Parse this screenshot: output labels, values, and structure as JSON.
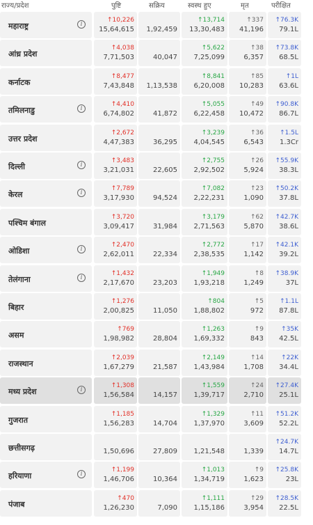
{
  "header": {
    "state": "राज्य/प्रदेश",
    "confirmed": "पुष्टि",
    "active": "सक्रिय",
    "recovered": "स्वस्थ हुए",
    "deceased": "मृत",
    "tested": "परीक्षित"
  },
  "colors": {
    "confirmed": "#e23028",
    "recovered": "#28a745",
    "tested": "#3e5fd1",
    "row_bg": "#f2f2f2",
    "row_highlight": "#e0e0e0"
  },
  "rows": [
    {
      "state": "महाराष्ट्र",
      "info": true,
      "conf_delta": "↑10,226",
      "conf": "15,64,615",
      "active": "1,92,459",
      "rec_delta": "↑13,714",
      "rec": "13,30,483",
      "dec_delta": "↑337",
      "dec": "41,196",
      "test_delta": "↑76.3K",
      "test": "79.1L"
    },
    {
      "state": "आंध्र प्रदेश",
      "info": false,
      "conf_delta": "↑4,038",
      "conf": "7,71,503",
      "active": "40,047",
      "rec_delta": "↑5,622",
      "rec": "7,25,099",
      "dec_delta": "↑38",
      "dec": "6,357",
      "test_delta": "↑73.8K",
      "test": "68.5L"
    },
    {
      "state": "कर्नाटक",
      "info": false,
      "conf_delta": "↑8,477",
      "conf": "7,43,848",
      "active": "1,13,538",
      "rec_delta": "↑8,841",
      "rec": "6,20,008",
      "dec_delta": "↑85",
      "dec": "10,283",
      "test_delta": "↑1L",
      "test": "63.6L"
    },
    {
      "state": "तमिलनाडु",
      "info": true,
      "conf_delta": "↑4,410",
      "conf": "6,74,802",
      "active": "41,872",
      "rec_delta": "↑5,055",
      "rec": "6,22,458",
      "dec_delta": "↑49",
      "dec": "10,472",
      "test_delta": "↑90.8K",
      "test": "86.7L"
    },
    {
      "state": "उत्तर प्रदेश",
      "info": false,
      "conf_delta": "↑2,672",
      "conf": "4,47,383",
      "active": "36,295",
      "rec_delta": "↑3,239",
      "rec": "4,04,545",
      "dec_delta": "↑36",
      "dec": "6,543",
      "test_delta": "↑1.5L",
      "test": "1.3Cr"
    },
    {
      "state": "दिल्ली",
      "info": true,
      "conf_delta": "↑3,483",
      "conf": "3,21,031",
      "active": "22,605",
      "rec_delta": "↑2,755",
      "rec": "2,92,502",
      "dec_delta": "↑26",
      "dec": "5,924",
      "test_delta": "↑55.9K",
      "test": "38.3L"
    },
    {
      "state": "केरल",
      "info": true,
      "conf_delta": "↑7,789",
      "conf": "3,17,930",
      "active": "94,524",
      "rec_delta": "↑7,082",
      "rec": "2,22,231",
      "dec_delta": "↑23",
      "dec": "1,090",
      "test_delta": "↑50.2K",
      "test": "37.8L"
    },
    {
      "state": "पश्चिम बंगाल",
      "info": false,
      "conf_delta": "↑3,720",
      "conf": "3,09,417",
      "active": "31,984",
      "rec_delta": "↑3,179",
      "rec": "2,71,563",
      "dec_delta": "↑62",
      "dec": "5,870",
      "test_delta": "↑42.7K",
      "test": "38.6L"
    },
    {
      "state": "ओडिशा",
      "info": true,
      "conf_delta": "↑2,470",
      "conf": "2,62,011",
      "active": "22,334",
      "rec_delta": "↑2,772",
      "rec": "2,38,535",
      "dec_delta": "↑17",
      "dec": "1,142",
      "test_delta": "↑42.1K",
      "test": "39.2L"
    },
    {
      "state": "तेलंगाना",
      "info": true,
      "conf_delta": "↑1,432",
      "conf": "2,17,670",
      "active": "23,203",
      "rec_delta": "↑1,949",
      "rec": "1,93,218",
      "dec_delta": "↑8",
      "dec": "1,249",
      "test_delta": "↑38.9K",
      "test": "37L"
    },
    {
      "state": "बिहार",
      "info": false,
      "conf_delta": "↑1,276",
      "conf": "2,00,825",
      "active": "11,050",
      "rec_delta": "↑804",
      "rec": "1,88,802",
      "dec_delta": "↑5",
      "dec": "972",
      "test_delta": "↑1.1L",
      "test": "87.8L"
    },
    {
      "state": "असम",
      "info": false,
      "conf_delta": "↑769",
      "conf": "1,98,982",
      "active": "28,804",
      "rec_delta": "↑1,263",
      "rec": "1,69,332",
      "dec_delta": "↑9",
      "dec": "843",
      "test_delta": "↑35K",
      "test": "42.5L"
    },
    {
      "state": "राजस्थान",
      "info": false,
      "conf_delta": "↑2,039",
      "conf": "1,67,279",
      "active": "21,587",
      "rec_delta": "↑2,149",
      "rec": "1,43,984",
      "dec_delta": "↑14",
      "dec": "1,708",
      "test_delta": "↑22K",
      "test": "34.4L"
    },
    {
      "state": "मध्य प्रदेश",
      "info": true,
      "highlight": true,
      "conf_delta": "↑1,308",
      "conf": "1,56,584",
      "active": "14,157",
      "rec_delta": "↑1,559",
      "rec": "1,39,717",
      "dec_delta": "↑24",
      "dec": "2,710",
      "test_delta": "↑27.4K",
      "test": "25.1L"
    },
    {
      "state": "गुजरात",
      "info": false,
      "conf_delta": "↑1,185",
      "conf": "1,56,283",
      "active": "14,704",
      "rec_delta": "↑1,329",
      "rec": "1,37,970",
      "dec_delta": "↑11",
      "dec": "3,609",
      "test_delta": "↑51.2K",
      "test": "52.2L"
    },
    {
      "state": "छत्तीसगढ़",
      "info": false,
      "conf_delta": "",
      "conf": "1,50,696",
      "active": "27,809",
      "rec_delta": "",
      "rec": "1,21,548",
      "dec_delta": "",
      "dec": "1,339",
      "test_delta": "↑24.7K",
      "test": "14.7L"
    },
    {
      "state": "हरियाणा",
      "info": true,
      "conf_delta": "↑1,199",
      "conf": "1,46,706",
      "active": "10,364",
      "rec_delta": "↑1,013",
      "rec": "1,34,719",
      "dec_delta": "↑9",
      "dec": "1,623",
      "test_delta": "↑25.8K",
      "test": "23L"
    },
    {
      "state": "पंजाब",
      "info": false,
      "conf_delta": "↑470",
      "conf": "1,26,230",
      "active": "7,090",
      "rec_delta": "↑1,111",
      "rec": "1,15,186",
      "dec_delta": "↑29",
      "dec": "3,954",
      "test_delta": "↑28.5K",
      "test": "22.5L"
    }
  ]
}
